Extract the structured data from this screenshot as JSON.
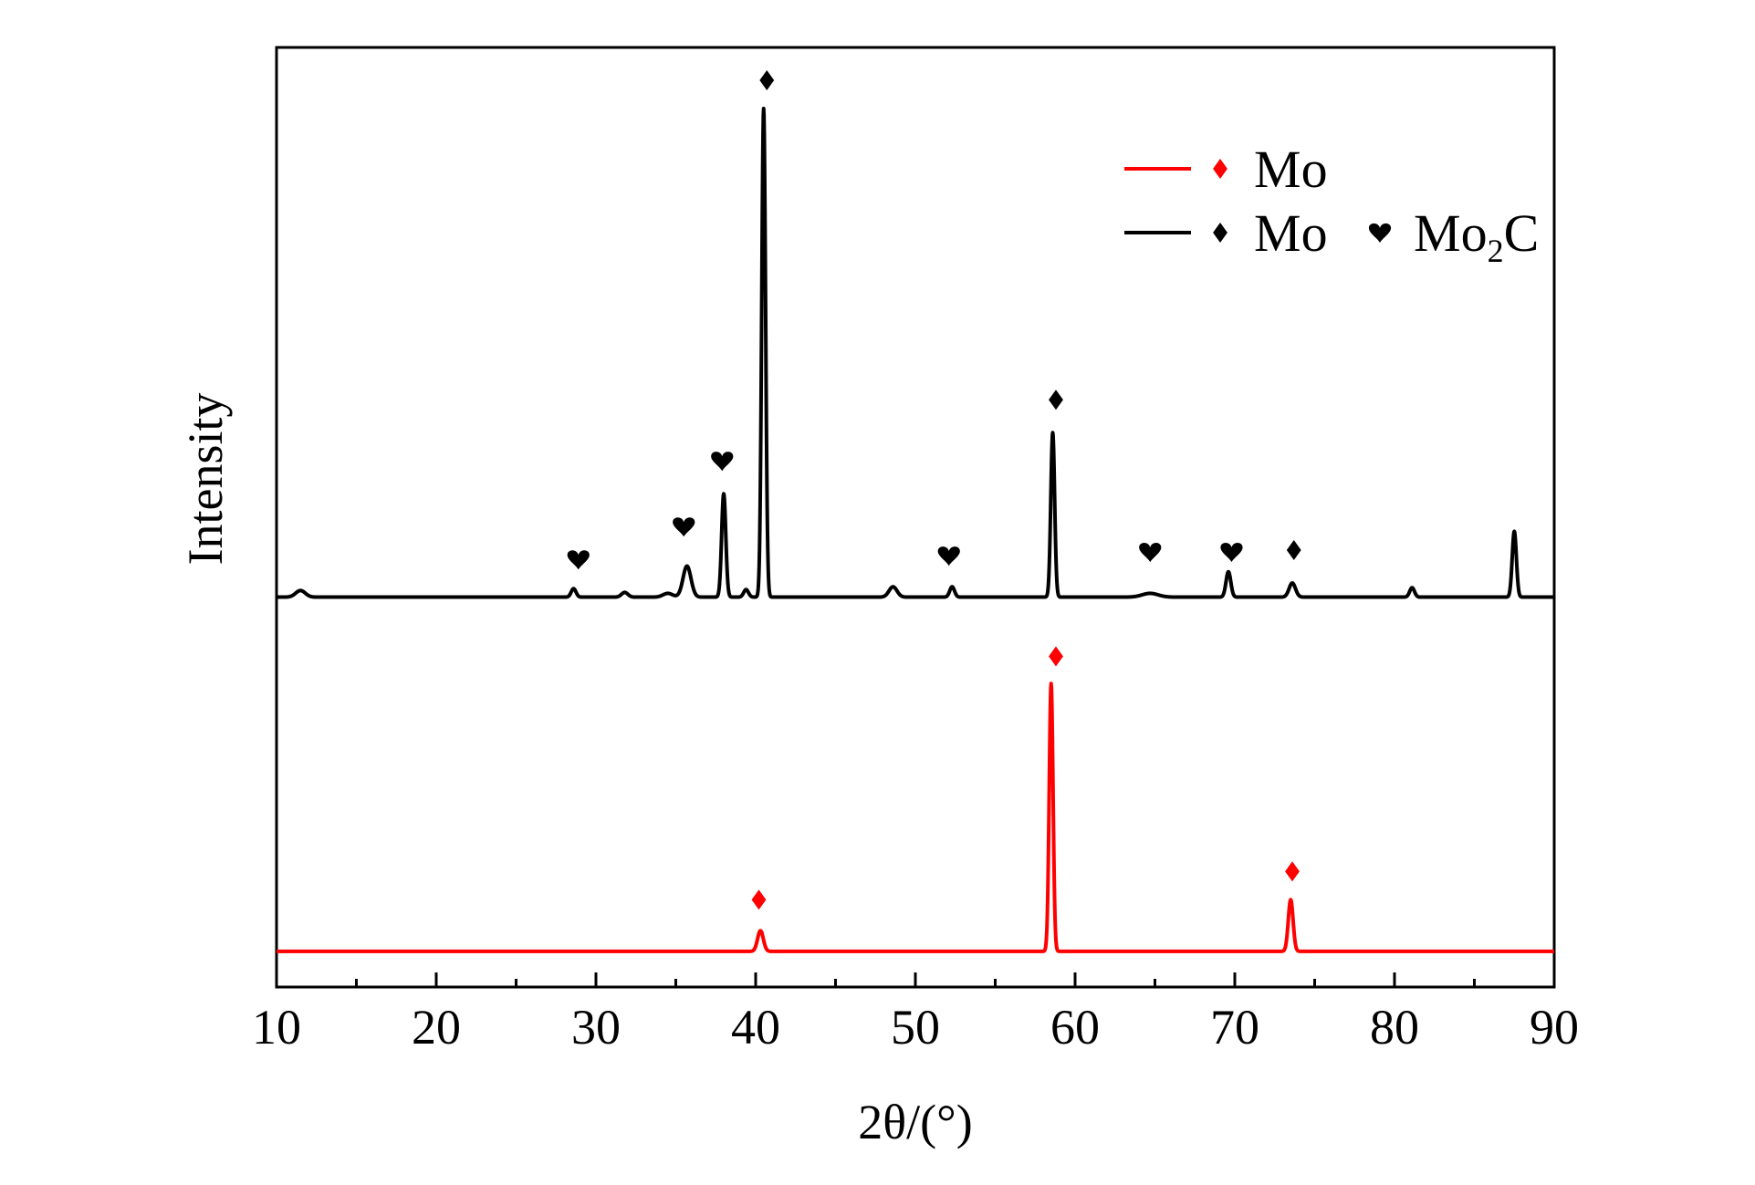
{
  "chart_data": {
    "type": "line",
    "xlabel": "2θ/(°)",
    "ylabel": "Intensity",
    "xlim": [
      10,
      90
    ],
    "ylim": [
      0,
      100
    ],
    "x_ticks": [
      10,
      20,
      30,
      40,
      50,
      60,
      70,
      80,
      90
    ],
    "x_tick_labels": [
      "10",
      "20",
      "30",
      "40",
      "50",
      "60",
      "70",
      "80",
      "90"
    ],
    "grid": false,
    "legend_position": "top-right",
    "series": [
      {
        "color": "#000000",
        "baseline": 41.5,
        "peaks": [
          {
            "x": 11.5,
            "h": 0.7,
            "w": 0.3
          },
          {
            "x": 28.6,
            "h": 0.9,
            "w": 0.15
          },
          {
            "x": 31.8,
            "h": 0.5,
            "w": 0.2
          },
          {
            "x": 34.5,
            "h": 0.4,
            "w": 0.3
          },
          {
            "x": 35.7,
            "h": 3.3,
            "w": 0.25
          },
          {
            "x": 38.0,
            "h": 11.0,
            "w": 0.13
          },
          {
            "x": 39.4,
            "h": 0.8,
            "w": 0.15
          },
          {
            "x": 40.5,
            "h": 52.0,
            "w": 0.12
          },
          {
            "x": 48.6,
            "h": 1.1,
            "w": 0.25
          },
          {
            "x": 52.3,
            "h": 1.1,
            "w": 0.15
          },
          {
            "x": 58.6,
            "h": 17.5,
            "w": 0.12
          },
          {
            "x": 64.7,
            "h": 0.4,
            "w": 0.5
          },
          {
            "x": 69.6,
            "h": 2.7,
            "w": 0.15
          },
          {
            "x": 73.6,
            "h": 1.5,
            "w": 0.2
          },
          {
            "x": 81.1,
            "h": 1.0,
            "w": 0.15
          },
          {
            "x": 87.5,
            "h": 7.0,
            "w": 0.13
          }
        ]
      },
      {
        "color": "#ff0000",
        "baseline": 3.8,
        "peaks": [
          {
            "x": 40.3,
            "h": 2.2,
            "w": 0.18
          },
          {
            "x": 58.5,
            "h": 28.5,
            "w": 0.12
          },
          {
            "x": 73.5,
            "h": 5.5,
            "w": 0.15
          }
        ]
      }
    ],
    "markers": [
      {
        "type": "heart",
        "x": 28.9,
        "y": 45.5,
        "color": "#000000"
      },
      {
        "type": "heart",
        "x": 35.5,
        "y": 49.0,
        "color": "#000000"
      },
      {
        "type": "heart",
        "x": 37.9,
        "y": 56.0,
        "color": "#000000"
      },
      {
        "type": "diamond",
        "x": 40.7,
        "y": 96.5,
        "color": "#000000"
      },
      {
        "type": "heart",
        "x": 52.1,
        "y": 45.9,
        "color": "#000000"
      },
      {
        "type": "diamond",
        "x": 58.8,
        "y": 62.5,
        "color": "#000000"
      },
      {
        "type": "heart",
        "x": 64.7,
        "y": 46.3,
        "color": "#000000"
      },
      {
        "type": "heart",
        "x": 69.8,
        "y": 46.3,
        "color": "#000000"
      },
      {
        "type": "diamond",
        "x": 73.7,
        "y": 46.5,
        "color": "#000000"
      },
      {
        "type": "diamond",
        "x": 58.8,
        "y": 35.2,
        "color": "#ff0000"
      },
      {
        "type": "diamond",
        "x": 40.2,
        "y": 9.3,
        "color": "#ff0000"
      },
      {
        "type": "diamond",
        "x": 73.6,
        "y": 12.3,
        "color": "#ff0000"
      }
    ],
    "legend": [
      {
        "color": "#ff0000",
        "entries": [
          {
            "marker": "diamond",
            "label": "Mo"
          }
        ]
      },
      {
        "color": "#000000",
        "entries": [
          {
            "marker": "diamond",
            "label": "Mo"
          },
          {
            "marker": "heart",
            "label": "Mo",
            "sub": "2",
            "suffix": "C"
          }
        ]
      }
    ]
  }
}
